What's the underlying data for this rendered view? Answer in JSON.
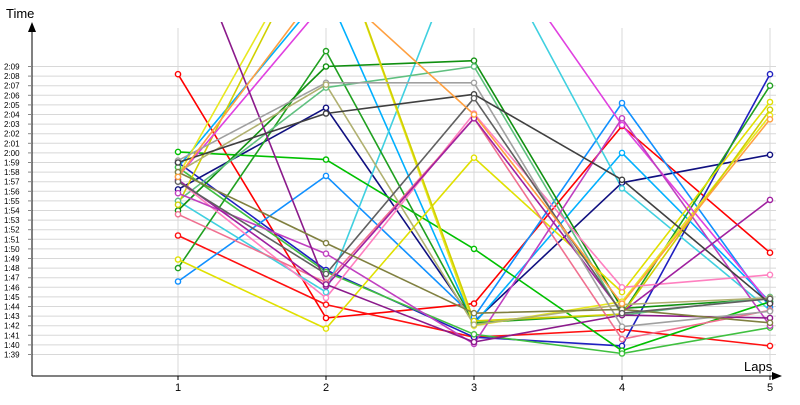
{
  "chart_data": {
    "type": "line",
    "title": "",
    "xlabel": "Laps",
    "ylabel": "Time",
    "x": [
      1,
      2,
      3,
      4,
      5
    ],
    "x_ticks": [
      "1",
      "2",
      "3",
      "4",
      "5"
    ],
    "ylim": [
      1.45,
      2.25
    ],
    "y_ticks": [
      "1:39",
      "1:40",
      "1:41",
      "1:42",
      "1:43",
      "1:44",
      "1:45",
      "1:46",
      "1:47",
      "1:48",
      "1:49",
      "1:50",
      "1:51",
      "1:52",
      "1:53",
      "1:54",
      "1:55",
      "1:56",
      "1:57",
      "1:58",
      "1:59",
      "2:00",
      "2:01",
      "2:02",
      "2:03",
      "2:04",
      "2:05",
      "2:06",
      "2:07",
      "2:08",
      "2:09"
    ],
    "grid": "horizontal and vertical",
    "legend": "none",
    "series": [
      {
        "color": "#ff0000",
        "values": [
          128.2,
          102.8,
          104.3,
          122.8,
          109.6
        ]
      },
      {
        "color": "#ff1010",
        "values": [
          111.4,
          104.2,
          100.8,
          101.6,
          99.9
        ]
      },
      {
        "color": "#2020c0",
        "values": [
          119.0,
          107.8,
          100.8,
          99.9,
          128.2
        ]
      },
      {
        "color": "#101080",
        "values": [
          116.2,
          124.7,
          102.4,
          116.9,
          119.8
        ]
      },
      {
        "color": "#1090ff",
        "values": [
          106.6,
          117.6,
          102.9,
          125.2,
          103.9
        ]
      },
      {
        "color": "#00b0ff",
        "values": [
          118.5,
          137.0,
          102.2,
          120.0,
          104.5
        ]
      },
      {
        "color": "#40d0e0",
        "values": [
          115.0,
          105.5,
          145.0,
          116.3,
          103.6
        ]
      },
      {
        "color": "#00c000",
        "values": [
          120.1,
          119.3,
          110.0,
          99.4,
          104.5
        ]
      },
      {
        "color": "#40c040",
        "values": [
          118.5,
          107.6,
          101.1,
          99.1,
          101.8
        ]
      },
      {
        "color": "#20a020",
        "values": [
          108.0,
          130.6,
          102.3,
          103.2,
          127.0
        ]
      },
      {
        "color": "#109010",
        "values": [
          114.0,
          129.0,
          129.6,
          103.8,
          104.8
        ]
      },
      {
        "color": "#60c080",
        "values": [
          115.0,
          126.8,
          129.0,
          103.1,
          105.0
        ]
      },
      {
        "color": "#e0e000",
        "values": [
          108.9,
          101.7,
          119.5,
          105.5,
          125.3
        ]
      },
      {
        "color": "#e8e820",
        "values": [
          117.6,
          145.0,
          102.0,
          104.5,
          123.9
        ]
      },
      {
        "color": "#d0d000",
        "values": [
          114.6,
          145.0,
          102.5,
          103.2,
          124.5
        ]
      },
      {
        "color": "#ff80c0",
        "values": [
          117.1,
          104.9,
          124.1,
          106.0,
          107.3
        ]
      },
      {
        "color": "#f07090",
        "values": [
          113.6,
          106.5,
          123.6,
          100.6,
          103.6
        ]
      },
      {
        "color": "#e040e0",
        "values": [
          117.5,
          135.8,
          145.0,
          122.9,
          104.3
        ]
      },
      {
        "color": "#c040c0",
        "values": [
          115.8,
          109.5,
          100.1,
          123.6,
          102.0
        ]
      },
      {
        "color": "#a020a0",
        "values": [
          117.2,
          106.1,
          123.6,
          103.4,
          115.1
        ]
      },
      {
        "color": "#8b1a8b",
        "values": [
          145.0,
          106.3,
          100.3,
          103.1,
          102.8
        ]
      },
      {
        "color": "#a0a0a0",
        "values": [
          119.2,
          127.3,
          127.3,
          101.9,
          103.5
        ]
      },
      {
        "color": "#b0b070",
        "values": [
          118.0,
          127.1,
          102.1,
          104.2,
          104.9
        ]
      },
      {
        "color": "#808040",
        "values": [
          118.0,
          110.6,
          103.3,
          103.7,
          102.3
        ]
      },
      {
        "color": "#404040",
        "values": [
          119.0,
          124.1,
          126.1,
          117.2,
          104.3
        ]
      },
      {
        "color": "#606060",
        "values": [
          117.0,
          107.4,
          125.7,
          103.3,
          104.8
        ]
      },
      {
        "color": "#ffa040",
        "values": [
          117.5,
          138.0,
          124.0,
          104.3,
          123.5
        ]
      }
    ]
  }
}
